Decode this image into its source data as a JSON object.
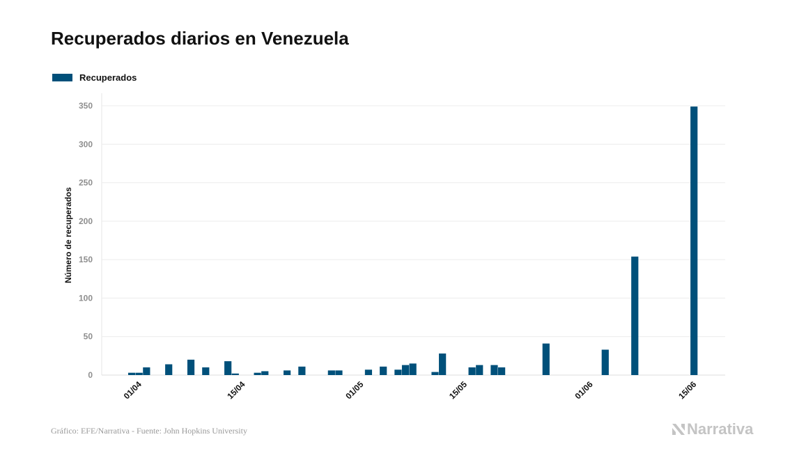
{
  "chart_data": {
    "type": "bar",
    "title": "Recuperados diarios en Venezuela",
    "ylabel": "Número de recuperados",
    "xlabel": "",
    "ylim": [
      0,
      350
    ],
    "yticks": [
      0,
      50,
      100,
      150,
      200,
      250,
      300,
      350
    ],
    "grid": true,
    "legend_position": "top-left",
    "bar_color": "#00507a",
    "x_start": "2020-03-31",
    "xtick_labels": [
      {
        "label": "01/04",
        "date": "2020-04-01"
      },
      {
        "label": "15/04",
        "date": "2020-04-15"
      },
      {
        "label": "01/05",
        "date": "2020-05-01"
      },
      {
        "label": "15/05",
        "date": "2020-05-15"
      },
      {
        "label": "01/06",
        "date": "2020-06-01"
      },
      {
        "label": "15/06",
        "date": "2020-06-15"
      }
    ],
    "series": [
      {
        "name": "Recuperados",
        "values": [
          {
            "date": "2020-03-31",
            "value": 3
          },
          {
            "date": "2020-04-01",
            "value": 3
          },
          {
            "date": "2020-04-02",
            "value": 10
          },
          {
            "date": "2020-04-05",
            "value": 14
          },
          {
            "date": "2020-04-08",
            "value": 20
          },
          {
            "date": "2020-04-10",
            "value": 10
          },
          {
            "date": "2020-04-13",
            "value": 18
          },
          {
            "date": "2020-04-14",
            "value": 2
          },
          {
            "date": "2020-04-17",
            "value": 3
          },
          {
            "date": "2020-04-18",
            "value": 5
          },
          {
            "date": "2020-04-21",
            "value": 6
          },
          {
            "date": "2020-04-23",
            "value": 11
          },
          {
            "date": "2020-04-27",
            "value": 6
          },
          {
            "date": "2020-04-28",
            "value": 6
          },
          {
            "date": "2020-05-02",
            "value": 7
          },
          {
            "date": "2020-05-04",
            "value": 11
          },
          {
            "date": "2020-05-06",
            "value": 7
          },
          {
            "date": "2020-05-07",
            "value": 13
          },
          {
            "date": "2020-05-08",
            "value": 15
          },
          {
            "date": "2020-05-11",
            "value": 4
          },
          {
            "date": "2020-05-12",
            "value": 28
          },
          {
            "date": "2020-05-16",
            "value": 10
          },
          {
            "date": "2020-05-17",
            "value": 13
          },
          {
            "date": "2020-05-19",
            "value": 13
          },
          {
            "date": "2020-05-20",
            "value": 10
          },
          {
            "date": "2020-05-26",
            "value": 41
          },
          {
            "date": "2020-06-03",
            "value": 33
          },
          {
            "date": "2020-06-07",
            "value": 154
          },
          {
            "date": "2020-06-15",
            "value": 349
          }
        ]
      }
    ]
  },
  "footer": {
    "source": "Gráfico: EFE/Narrativa - Fuente: John Hopkins University",
    "brand": "Narrativa"
  }
}
